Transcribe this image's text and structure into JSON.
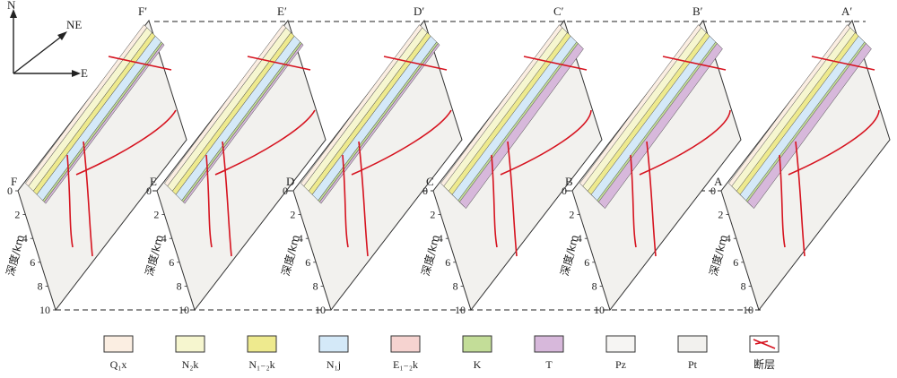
{
  "compass": {
    "north": "N",
    "northeast": "NE",
    "east": "E"
  },
  "depth_axis": {
    "label": "深度/km",
    "ticks": [
      "0",
      "2",
      "4",
      "6",
      "8",
      "10"
    ]
  },
  "sections": [
    {
      "front": "F",
      "back": "F′"
    },
    {
      "front": "E",
      "back": "E′"
    },
    {
      "front": "D",
      "back": "D′"
    },
    {
      "front": "C",
      "back": "C′"
    },
    {
      "front": "B",
      "back": "B′"
    },
    {
      "front": "A",
      "back": "A′"
    }
  ],
  "legend": [
    {
      "label": "Q₁x",
      "color": "#fbeee2"
    },
    {
      "label": "N₂k",
      "color": "#f6f6cf"
    },
    {
      "label": "N₁₋₂k",
      "color": "#eeea8e"
    },
    {
      "label": "N₁j",
      "color": "#d4e9f8"
    },
    {
      "label": "E₁₋₂k",
      "color": "#f6d3d0"
    },
    {
      "label": "K",
      "color": "#c3dd98"
    },
    {
      "label": "T",
      "color": "#d7b8db"
    },
    {
      "label": "Pz",
      "color": "#f6f5f3"
    },
    {
      "label": "Pt",
      "color": "#f2f1ee"
    },
    {
      "label": "断层",
      "color": "#d6131f"
    }
  ]
}
